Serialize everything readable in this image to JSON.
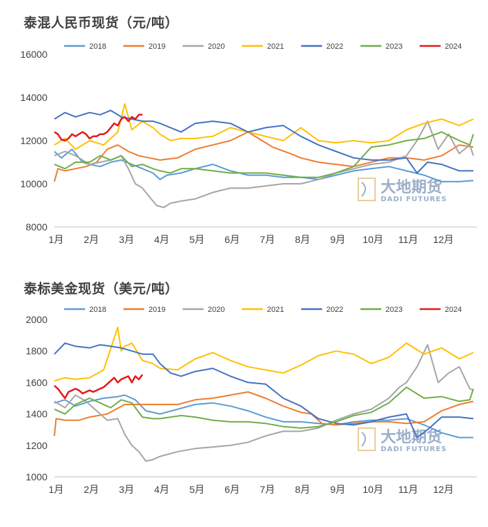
{
  "watermark": {
    "cn": "大地期货",
    "en": "DADI FUTURES"
  },
  "chart_data": [
    {
      "type": "line",
      "title": "泰混人民币现货（元/吨）",
      "ylim": [
        8000,
        16000
      ],
      "yticks": [
        "8000",
        "10000",
        "12000",
        "14000",
        "16000"
      ],
      "xlim": [
        0,
        12
      ],
      "xticks": [
        "1月",
        "2月",
        "3月",
        "4月",
        "5月",
        "6月",
        "7月",
        "8月",
        "9月",
        "10月",
        "11月",
        "12月"
      ],
      "grid": false,
      "legend_position": "top",
      "series": [
        {
          "name": "2018",
          "color": "#5b9bd5",
          "x": [
            0,
            0.2,
            0.5,
            0.8,
            1.0,
            1.3,
            1.6,
            1.9,
            2.2,
            2.5,
            2.8,
            3.0,
            3.2,
            3.6,
            4.0,
            4.5,
            5.0,
            5.5,
            6.0,
            6.5,
            7.0,
            7.5,
            8.0,
            8.5,
            9.0,
            9.5,
            10.0,
            10.5,
            11.0,
            11.5,
            11.9
          ],
          "y": [
            11500,
            11200,
            11600,
            11000,
            10900,
            10800,
            11000,
            11100,
            10900,
            10700,
            10500,
            10200,
            10400,
            10500,
            10700,
            10900,
            10600,
            10400,
            10400,
            10300,
            10300,
            10200,
            10400,
            10600,
            10700,
            10800,
            10600,
            10400,
            10100,
            10100,
            10150
          ]
        },
        {
          "name": "2019",
          "color": "#ed7d31",
          "x": [
            0,
            0.1,
            0.3,
            0.6,
            0.9,
            1.2,
            1.5,
            1.8,
            2.1,
            2.4,
            2.7,
            3.0,
            3.5,
            4.0,
            4.5,
            5.0,
            5.5,
            5.8,
            6.2,
            6.7,
            7.0,
            7.5,
            8.0,
            8.5,
            9.0,
            9.5,
            10.0,
            10.5,
            11.0,
            11.5,
            11.9
          ],
          "y": [
            10100,
            10700,
            10600,
            10700,
            10800,
            11000,
            11600,
            11800,
            11500,
            11300,
            11200,
            11100,
            11200,
            11600,
            11800,
            12000,
            12400,
            12100,
            11700,
            11400,
            11200,
            11000,
            10900,
            10800,
            11000,
            11200,
            11200,
            11100,
            11300,
            11800,
            11700
          ]
        },
        {
          "name": "2020",
          "color": "#a5a5a5",
          "x": [
            0,
            0.3,
            0.6,
            1.0,
            1.3,
            1.6,
            1.9,
            2.1,
            2.3,
            2.5,
            2.7,
            2.9,
            3.1,
            3.3,
            3.6,
            4.0,
            4.5,
            5.0,
            5.5,
            6.0,
            6.5,
            7.0,
            7.5,
            8.0,
            8.5,
            9.0,
            9.5,
            10.0,
            10.3,
            10.6,
            10.9,
            11.2,
            11.5,
            11.8,
            11.9
          ],
          "y": [
            11300,
            11500,
            11300,
            10900,
            11000,
            11100,
            11300,
            10700,
            10000,
            9800,
            9400,
            9000,
            8900,
            9100,
            9200,
            9300,
            9600,
            9800,
            9800,
            9900,
            10000,
            10000,
            10200,
            10500,
            10700,
            10900,
            11000,
            11300,
            12000,
            12900,
            11600,
            12300,
            11400,
            11800,
            11300
          ]
        },
        {
          "name": "2021",
          "color": "#ffc000",
          "x": [
            0,
            0.3,
            0.6,
            1.0,
            1.4,
            1.8,
            2.0,
            2.2,
            2.5,
            2.8,
            3.0,
            3.3,
            3.6,
            4.0,
            4.5,
            5.0,
            5.5,
            6.0,
            6.5,
            7.0,
            7.5,
            8.0,
            8.5,
            9.0,
            9.5,
            10.0,
            10.5,
            11.0,
            11.5,
            11.9
          ],
          "y": [
            11800,
            12100,
            11600,
            12000,
            11800,
            12400,
            13700,
            12500,
            12900,
            12600,
            12300,
            12000,
            12100,
            12100,
            12200,
            12600,
            12400,
            12200,
            12000,
            12600,
            12000,
            11900,
            12000,
            11900,
            12000,
            12500,
            12800,
            13000,
            12700,
            13000
          ]
        },
        {
          "name": "2022",
          "color": "#4472c4",
          "x": [
            0,
            0.3,
            0.6,
            1.0,
            1.3,
            1.6,
            1.9,
            2.2,
            2.5,
            2.8,
            3.0,
            3.3,
            3.6,
            4.0,
            4.5,
            5.0,
            5.5,
            6.0,
            6.5,
            7.0,
            7.5,
            8.0,
            8.5,
            9.0,
            9.5,
            10.0,
            10.3,
            10.6,
            11.0,
            11.5,
            11.9
          ],
          "y": [
            13000,
            13300,
            13100,
            13300,
            13200,
            13400,
            13100,
            13000,
            12900,
            12900,
            12800,
            12600,
            12400,
            12800,
            12900,
            12800,
            12400,
            12600,
            12700,
            12200,
            11800,
            11500,
            11200,
            11100,
            11100,
            11200,
            10500,
            11000,
            10900,
            10600,
            10600
          ]
        },
        {
          "name": "2023",
          "color": "#70ad47",
          "x": [
            0,
            0.3,
            0.6,
            1.0,
            1.3,
            1.6,
            1.9,
            2.2,
            2.5,
            2.8,
            3.0,
            3.3,
            3.6,
            4.0,
            4.5,
            5.0,
            5.5,
            6.0,
            6.5,
            7.0,
            7.5,
            8.0,
            8.5,
            9.0,
            9.5,
            10.0,
            10.5,
            11.0,
            11.5,
            11.8,
            11.9
          ],
          "y": [
            10900,
            10700,
            11000,
            11000,
            11300,
            11100,
            11300,
            10800,
            10900,
            10700,
            10600,
            10500,
            10700,
            10700,
            10600,
            10500,
            10500,
            10500,
            10400,
            10300,
            10300,
            10500,
            10800,
            11700,
            11800,
            12000,
            12100,
            12400,
            12000,
            11800,
            12300
          ]
        },
        {
          "name": "2024",
          "color": "#e31a1c",
          "x": [
            0,
            0.1,
            0.2,
            0.3,
            0.4,
            0.5,
            0.6,
            0.7,
            0.8,
            0.9,
            1.0,
            1.1,
            1.2,
            1.3,
            1.4,
            1.5,
            1.6,
            1.7,
            1.8,
            1.9,
            2.0,
            2.1,
            2.2,
            2.3,
            2.4,
            2.5
          ],
          "y": [
            12400,
            12300,
            12050,
            12000,
            12100,
            12300,
            12200,
            12300,
            12400,
            12300,
            12100,
            12200,
            12200,
            12300,
            12300,
            12400,
            12600,
            12800,
            12700,
            13000,
            13100,
            12900,
            13100,
            13000,
            13200,
            13200
          ]
        }
      ]
    },
    {
      "type": "line",
      "title": "泰标美金现货（美元/吨）",
      "ylim": [
        1000,
        2000
      ],
      "yticks": [
        "1000",
        "1200",
        "1400",
        "1600",
        "1800",
        "2000"
      ],
      "xlim": [
        0,
        12
      ],
      "xticks": [
        "1月",
        "2月",
        "3月",
        "4月",
        "5月",
        "6月",
        "7月",
        "8月",
        "9月",
        "10月",
        "11月",
        "12月"
      ],
      "grid": false,
      "legend_position": "top",
      "series": [
        {
          "name": "2018",
          "color": "#5b9bd5",
          "x": [
            0,
            0.3,
            0.6,
            1.0,
            1.4,
            1.8,
            2.0,
            2.3,
            2.6,
            3.0,
            3.5,
            4.0,
            4.5,
            5.0,
            5.5,
            6.0,
            6.5,
            7.0,
            7.5,
            8.0,
            8.5,
            9.0,
            9.5,
            10.0,
            10.5,
            11.0,
            11.5,
            11.9
          ],
          "y": [
            1470,
            1490,
            1450,
            1480,
            1500,
            1510,
            1520,
            1490,
            1420,
            1400,
            1430,
            1460,
            1470,
            1450,
            1420,
            1380,
            1350,
            1350,
            1340,
            1330,
            1350,
            1360,
            1360,
            1370,
            1330,
            1280,
            1250,
            1250
          ]
        },
        {
          "name": "2019",
          "color": "#ed7d31",
          "x": [
            0,
            0.05,
            0.3,
            0.7,
            1.0,
            1.5,
            2.0,
            2.5,
            3.0,
            3.5,
            4.0,
            4.5,
            5.0,
            5.5,
            6.0,
            6.5,
            7.0,
            7.3,
            7.6,
            8.0,
            8.5,
            9.0,
            9.5,
            10.0,
            10.5,
            11.0,
            11.5,
            11.9
          ],
          "y": [
            1260,
            1370,
            1360,
            1360,
            1380,
            1400,
            1460,
            1460,
            1460,
            1460,
            1490,
            1500,
            1520,
            1540,
            1500,
            1450,
            1410,
            1400,
            1340,
            1330,
            1340,
            1350,
            1350,
            1340,
            1350,
            1420,
            1460,
            1480
          ]
        },
        {
          "name": "2020",
          "color": "#a5a5a5",
          "x": [
            0,
            0.3,
            0.6,
            0.9,
            1.2,
            1.5,
            1.8,
            2.0,
            2.2,
            2.4,
            2.6,
            2.8,
            3.0,
            3.5,
            4.0,
            4.5,
            5.0,
            5.5,
            6.0,
            6.5,
            7.0,
            7.5,
            8.0,
            8.5,
            9.0,
            9.5,
            9.8,
            10.0,
            10.3,
            10.6,
            10.9,
            11.2,
            11.5,
            11.8,
            11.9
          ],
          "y": [
            1480,
            1440,
            1520,
            1480,
            1420,
            1360,
            1370,
            1270,
            1200,
            1160,
            1100,
            1110,
            1130,
            1160,
            1180,
            1190,
            1200,
            1220,
            1260,
            1290,
            1290,
            1310,
            1360,
            1400,
            1430,
            1500,
            1570,
            1600,
            1700,
            1840,
            1600,
            1660,
            1700,
            1560,
            1550
          ]
        },
        {
          "name": "2021",
          "color": "#ffc000",
          "x": [
            0,
            0.3,
            0.6,
            1.0,
            1.4,
            1.8,
            1.9,
            2.0,
            2.2,
            2.5,
            2.8,
            3.0,
            3.5,
            4.0,
            4.5,
            5.0,
            5.5,
            6.0,
            6.5,
            7.0,
            7.5,
            8.0,
            8.5,
            9.0,
            9.5,
            10.0,
            10.5,
            11.0,
            11.5,
            11.9
          ],
          "y": [
            1610,
            1630,
            1620,
            1630,
            1680,
            1950,
            1800,
            1830,
            1850,
            1740,
            1720,
            1690,
            1680,
            1750,
            1790,
            1740,
            1700,
            1680,
            1660,
            1710,
            1770,
            1800,
            1780,
            1720,
            1760,
            1850,
            1780,
            1820,
            1750,
            1790
          ]
        },
        {
          "name": "2022",
          "color": "#4472c4",
          "x": [
            0,
            0.3,
            0.6,
            1.0,
            1.3,
            1.6,
            1.9,
            2.2,
            2.5,
            2.8,
            3.0,
            3.3,
            3.6,
            4.0,
            4.5,
            5.0,
            5.5,
            6.0,
            6.5,
            7.0,
            7.5,
            8.0,
            8.5,
            9.0,
            9.5,
            10.0,
            10.3,
            10.6,
            11.0,
            11.5,
            11.9
          ],
          "y": [
            1780,
            1850,
            1830,
            1820,
            1840,
            1830,
            1820,
            1800,
            1780,
            1780,
            1720,
            1660,
            1640,
            1670,
            1690,
            1640,
            1600,
            1590,
            1500,
            1450,
            1370,
            1340,
            1330,
            1350,
            1380,
            1400,
            1250,
            1300,
            1380,
            1380,
            1370
          ]
        },
        {
          "name": "2023",
          "color": "#70ad47",
          "x": [
            0,
            0.3,
            0.6,
            1.0,
            1.3,
            1.6,
            1.9,
            2.2,
            2.5,
            2.8,
            3.0,
            3.3,
            3.6,
            4.0,
            4.5,
            5.0,
            5.5,
            6.0,
            6.5,
            7.0,
            7.5,
            8.0,
            8.5,
            9.0,
            9.5,
            10.0,
            10.5,
            11.0,
            11.5,
            11.8,
            11.9
          ],
          "y": [
            1430,
            1400,
            1460,
            1500,
            1470,
            1440,
            1490,
            1470,
            1380,
            1370,
            1370,
            1380,
            1390,
            1380,
            1360,
            1350,
            1350,
            1340,
            1320,
            1310,
            1320,
            1350,
            1390,
            1410,
            1470,
            1570,
            1500,
            1510,
            1480,
            1490,
            1560
          ]
        },
        {
          "name": "2024",
          "color": "#e31a1c",
          "x": [
            0,
            0.1,
            0.2,
            0.3,
            0.4,
            0.5,
            0.6,
            0.7,
            0.8,
            0.9,
            1.0,
            1.1,
            1.2,
            1.3,
            1.4,
            1.5,
            1.6,
            1.7,
            1.8,
            1.9,
            2.0,
            2.1,
            2.2,
            2.3,
            2.4,
            2.5
          ],
          "y": [
            1580,
            1560,
            1530,
            1500,
            1540,
            1550,
            1560,
            1550,
            1530,
            1540,
            1550,
            1540,
            1550,
            1560,
            1570,
            1590,
            1610,
            1630,
            1600,
            1620,
            1630,
            1640,
            1600,
            1640,
            1620,
            1650
          ]
        }
      ]
    }
  ]
}
